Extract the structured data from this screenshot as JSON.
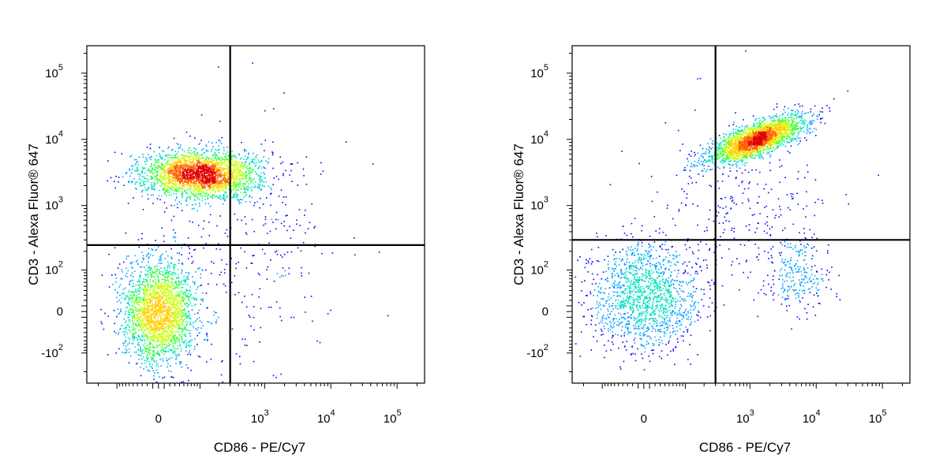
{
  "colors": {
    "density_scale": [
      "#0000ff",
      "#00a0ff",
      "#00e0c0",
      "#40ff40",
      "#c8ff00",
      "#ffd000",
      "#ff6000",
      "#e00000"
    ],
    "gate_line": "#000000",
    "frame": "#000000"
  },
  "chart_data": [
    {
      "type": "scatter",
      "title": "",
      "xlabel": "CD86 - PE/Cy7",
      "ylabel": "CD3 - Alexa Fluor® 647",
      "x_scale": "biexponential",
      "y_scale": "biexponential",
      "x_ticks": [
        {
          "value": 0,
          "base": "0",
          "exp": ""
        },
        {
          "value": 1000,
          "base": "10",
          "exp": "3"
        },
        {
          "value": 10000,
          "base": "10",
          "exp": "4"
        },
        {
          "value": 100000,
          "base": "10",
          "exp": "5"
        }
      ],
      "y_ticks": [
        {
          "value": 100000,
          "base": "10",
          "exp": "5"
        },
        {
          "value": 10000,
          "base": "10",
          "exp": "4"
        },
        {
          "value": 1000,
          "base": "10",
          "exp": "3"
        },
        {
          "value": 100,
          "base": "10",
          "exp": "2"
        },
        {
          "value": 0,
          "base": "0",
          "exp": ""
        },
        {
          "value": -100,
          "base": "-10",
          "exp": "2"
        }
      ],
      "gate": {
        "x": 300,
        "y": 250
      },
      "series": [
        {
          "population": "CD3+ CD86-",
          "center_x": 100,
          "center_y": 3000,
          "spread_x_decades": 0.55,
          "spread_y_decades": 0.22,
          "count": 2600
        },
        {
          "population": "CD3- CD86-",
          "center_x": 0,
          "center_y": 0,
          "spread_x_decades": 0.35,
          "spread_y_decades": 0.5,
          "count": 2300
        },
        {
          "population": "sparse",
          "center_x": 600,
          "center_y": 300,
          "spread_x_decades": 0.9,
          "spread_y_decades": 1.2,
          "count": 300
        }
      ]
    },
    {
      "type": "scatter",
      "title": "",
      "xlabel": "CD86 - PE/Cy7",
      "ylabel": "CD3 - Alexa Fluor® 647",
      "x_scale": "biexponential",
      "y_scale": "biexponential",
      "x_ticks": [
        {
          "value": 0,
          "base": "0",
          "exp": ""
        },
        {
          "value": 1000,
          "base": "10",
          "exp": "3"
        },
        {
          "value": 10000,
          "base": "10",
          "exp": "4"
        },
        {
          "value": 100000,
          "base": "10",
          "exp": "5"
        }
      ],
      "y_ticks": [
        {
          "value": 100000,
          "base": "10",
          "exp": "5"
        },
        {
          "value": 10000,
          "base": "10",
          "exp": "4"
        },
        {
          "value": 1000,
          "base": "10",
          "exp": "3"
        },
        {
          "value": 100,
          "base": "10",
          "exp": "2"
        },
        {
          "value": 0,
          "base": "0",
          "exp": ""
        },
        {
          "value": -100,
          "base": "-10",
          "exp": "2"
        }
      ],
      "gate": {
        "x": 300,
        "y": 300
      },
      "series": [
        {
          "population": "CD3+ CD86+",
          "center_x": 1200,
          "center_y": 10000,
          "spread_x_decades": 0.45,
          "spread_y_decades": 0.15,
          "count": 2400
        },
        {
          "population": "CD3- CD86-",
          "center_x": 0,
          "center_y": 30,
          "spread_x_decades": 0.5,
          "spread_y_decades": 0.5,
          "count": 1500
        },
        {
          "population": "CD3- CD86+",
          "center_x": 5000,
          "center_y": 80,
          "spread_x_decades": 0.3,
          "spread_y_decades": 0.35,
          "count": 250
        },
        {
          "population": "sparse",
          "center_x": 800,
          "center_y": 800,
          "spread_x_decades": 0.8,
          "spread_y_decades": 0.8,
          "count": 300
        }
      ]
    }
  ]
}
